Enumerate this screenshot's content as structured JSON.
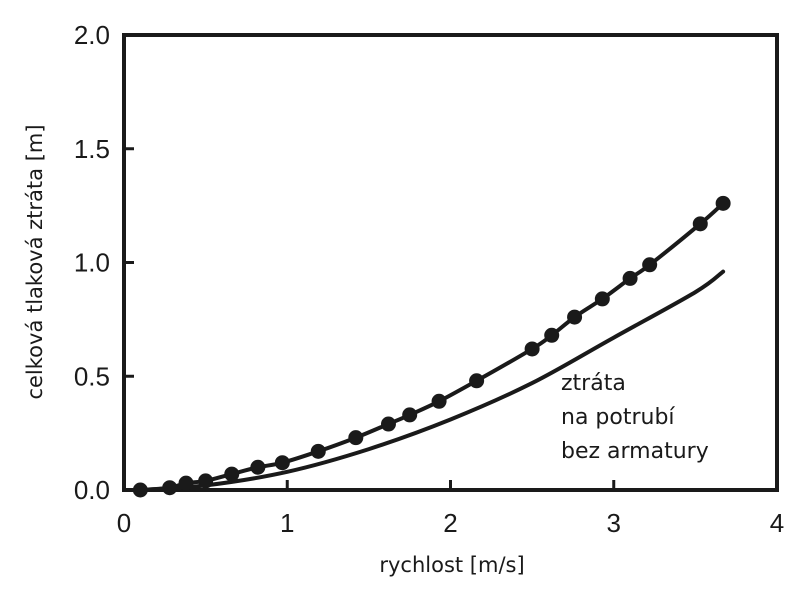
{
  "chart_data": {
    "type": "line",
    "xlabel": "rychlost [m/s]",
    "ylabel": "celková tlaková ztráta [m]",
    "xlim": [
      0,
      4
    ],
    "ylim": [
      0,
      2
    ],
    "x_ticks": [
      "0",
      "1",
      "2",
      "3",
      "4"
    ],
    "y_ticks": [
      "0.0",
      "0.5",
      "1.0",
      "1.5",
      "2.0"
    ],
    "grid": false,
    "series": [
      {
        "name": "",
        "style": "line-with-markers",
        "x": [
          0.1,
          0.28,
          0.38,
          0.5,
          0.66,
          0.82,
          0.97,
          1.19,
          1.42,
          1.62,
          1.75,
          1.93,
          2.16,
          2.5,
          2.62,
          2.76,
          2.93,
          3.1,
          3.22,
          3.53,
          3.67
        ],
        "y": [
          0.0,
          0.01,
          0.03,
          0.04,
          0.07,
          0.1,
          0.12,
          0.17,
          0.23,
          0.29,
          0.33,
          0.39,
          0.48,
          0.62,
          0.68,
          0.76,
          0.84,
          0.93,
          0.99,
          1.17,
          1.26
        ]
      },
      {
        "name": "",
        "style": "line",
        "x": [
          0.1,
          0.5,
          1.0,
          1.5,
          2.0,
          2.5,
          3.0,
          3.5,
          3.67
        ],
        "y": [
          0.0,
          0.02,
          0.08,
          0.18,
          0.31,
          0.47,
          0.67,
          0.87,
          0.96
        ]
      }
    ],
    "annotation": [
      "ztráta",
      "na potrubí",
      "bez armatury"
    ],
    "colors": {
      "line": "#1a1a1a",
      "frame": "#1a1a1a",
      "background": "#ffffff"
    }
  }
}
